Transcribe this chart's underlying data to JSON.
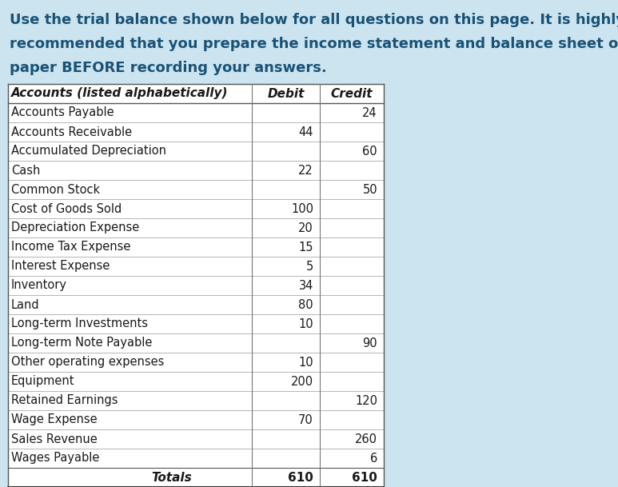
{
  "background_color": "#cce4f0",
  "table_bg": "#ffffff",
  "intro_lines": [
    "Use the trial balance shown below for all questions on this page. It is highly",
    "recommended that you prepare the income statement and balance sheet on scratch",
    "paper BEFORE recording your answers."
  ],
  "header_row": [
    "Accounts (listed alphabetically)",
    "Debit",
    "Credit"
  ],
  "rows": [
    [
      "Accounts Payable",
      "",
      "24"
    ],
    [
      "Accounts Receivable",
      "44",
      ""
    ],
    [
      "Accumulated Depreciation",
      "",
      "60"
    ],
    [
      "Cash",
      "22",
      ""
    ],
    [
      "Common Stock",
      "",
      "50"
    ],
    [
      "Cost of Goods Sold",
      "100",
      ""
    ],
    [
      "Depreciation Expense",
      "20",
      ""
    ],
    [
      "Income Tax Expense",
      "15",
      ""
    ],
    [
      "Interest Expense",
      "5",
      ""
    ],
    [
      "Inventory",
      "34",
      ""
    ],
    [
      "Land",
      "80",
      ""
    ],
    [
      "Long-term Investments",
      "10",
      ""
    ],
    [
      "Long-term Note Payable",
      "",
      "90"
    ],
    [
      "Other operating expenses",
      "10",
      ""
    ],
    [
      "Equipment",
      "200",
      ""
    ],
    [
      "Retained Earnings",
      "",
      "120"
    ],
    [
      "Wage Expense",
      "70",
      ""
    ],
    [
      "Sales Revenue",
      "",
      "260"
    ],
    [
      "Wages Payable",
      "",
      "6"
    ]
  ],
  "totals_row": [
    "Totals",
    "610",
    "610"
  ],
  "intro_color": "#1a5276",
  "header_color": "#1a1a1a",
  "body_color": "#1a1a1a",
  "line_color": "#888888",
  "intro_fontsize": 13,
  "header_fontsize": 11,
  "body_fontsize": 10.5,
  "fig_width": 7.73,
  "fig_height": 6.09,
  "dpi": 100
}
